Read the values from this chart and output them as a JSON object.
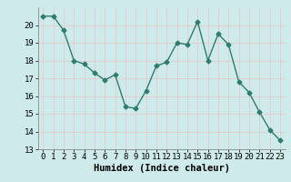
{
  "x": [
    0,
    1,
    2,
    3,
    4,
    5,
    6,
    7,
    8,
    9,
    10,
    11,
    12,
    13,
    14,
    15,
    16,
    17,
    18,
    19,
    20,
    21,
    22,
    23
  ],
  "y": [
    20.5,
    20.5,
    19.7,
    18.0,
    17.8,
    17.3,
    16.9,
    17.2,
    15.4,
    15.3,
    16.3,
    17.7,
    17.9,
    19.0,
    18.9,
    20.2,
    18.0,
    19.5,
    18.9,
    16.8,
    16.2,
    15.1,
    14.1,
    13.5
  ],
  "line_color": "#2d7d6e",
  "marker": "D",
  "marker_size": 2.5,
  "bg_color": "#ceeaea",
  "grid_color": "#e8c4c4",
  "xlabel": "Humidex (Indice chaleur)",
  "ylim": [
    13,
    21
  ],
  "xlim": [
    -0.5,
    23.5
  ],
  "yticks": [
    13,
    14,
    15,
    16,
    17,
    18,
    19,
    20
  ],
  "xticks": [
    0,
    1,
    2,
    3,
    4,
    5,
    6,
    7,
    8,
    9,
    10,
    11,
    12,
    13,
    14,
    15,
    16,
    17,
    18,
    19,
    20,
    21,
    22,
    23
  ],
  "xlabel_fontsize": 7.5,
  "tick_fontsize": 6.5,
  "line_width": 1.0,
  "spine_color": "#888888"
}
